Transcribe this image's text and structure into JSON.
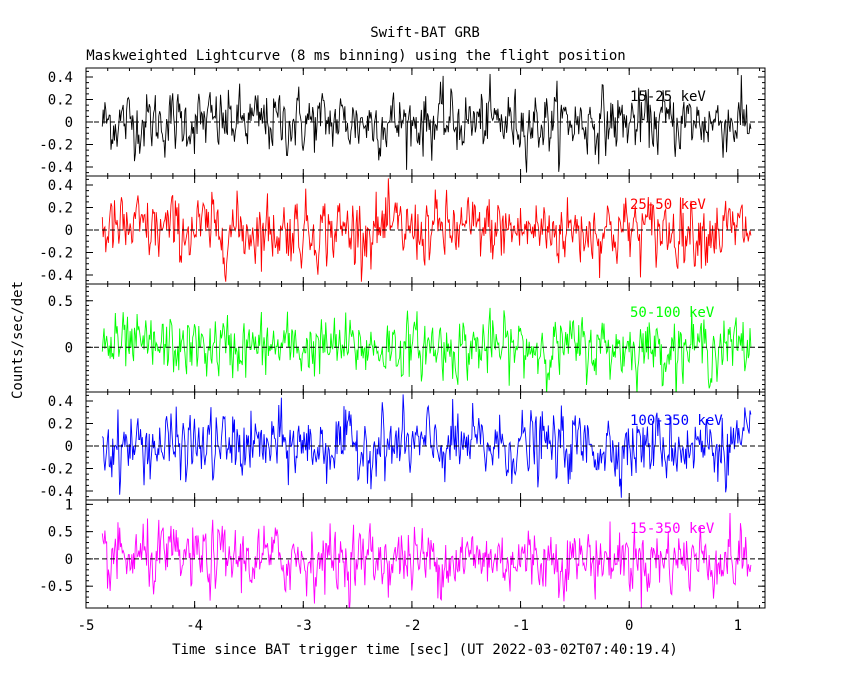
{
  "chart_data": {
    "type": "line",
    "title": "Swift-BAT GRB",
    "subtitle": "Maskweighted Lightcurve (8 ms binning) using the flight position",
    "xlabel": "Time since BAT trigger time [sec] (UT 2022-03-02T07:40:19.4)",
    "ylabel": "Counts/sec/det",
    "xlim": [
      -5,
      1.25
    ],
    "x_range": [
      -4.85,
      1.12
    ],
    "bin_width": 0.008,
    "x_ticks": [
      -5,
      -4,
      -3,
      -2,
      -1,
      0,
      1
    ],
    "x_tick_labels": [
      "-5",
      "-4",
      "-3",
      "-2",
      "-1",
      "0",
      "1"
    ],
    "panels": [
      {
        "name": "15-25 keV",
        "label": "15-25 keV",
        "color": "#000000",
        "ylim": [
          -0.48,
          0.48
        ],
        "ticks": [
          -0.4,
          -0.2,
          0,
          0.2,
          0.4
        ],
        "tick_labels": [
          "-0.4",
          "-0.2",
          "0",
          "0.2",
          "0.4"
        ],
        "sigma": 0.13,
        "max_abs": 0.45
      },
      {
        "name": "25-50 keV",
        "label": "25-50 keV",
        "color": "#ff0000",
        "ylim": [
          -0.48,
          0.48
        ],
        "ticks": [
          -0.4,
          -0.2,
          0,
          0.2,
          0.4
        ],
        "tick_labels": [
          "-0.4",
          "-0.2",
          "0",
          "0.2",
          "0.4"
        ],
        "sigma": 0.14,
        "max_abs": 0.46
      },
      {
        "name": "50-100 keV",
        "label": "50-100 keV",
        "color": "#00ff00",
        "ylim": [
          -0.48,
          0.68
        ],
        "ticks": [
          0,
          0.5
        ],
        "tick_labels": [
          "0",
          "0.5"
        ],
        "sigma": 0.15,
        "max_abs": 0.6
      },
      {
        "name": "100-350 keV",
        "label": "100-350 keV",
        "color": "#0000ff",
        "ylim": [
          -0.48,
          0.48
        ],
        "ticks": [
          -0.4,
          -0.2,
          0,
          0.2,
          0.4
        ],
        "tick_labels": [
          "-0.4",
          "-0.2",
          "0",
          "0.2",
          "0.4"
        ],
        "sigma": 0.14,
        "max_abs": 0.46
      },
      {
        "name": "15-350 keV",
        "label": "15-350 keV",
        "color": "#ff00ff",
        "ylim": [
          -0.9,
          1.08
        ],
        "ticks": [
          -0.5,
          0,
          0.5,
          1
        ],
        "tick_labels": [
          "-0.5",
          "0",
          "0.5",
          "1"
        ],
        "sigma": 0.28,
        "max_abs": 1.0
      }
    ]
  }
}
